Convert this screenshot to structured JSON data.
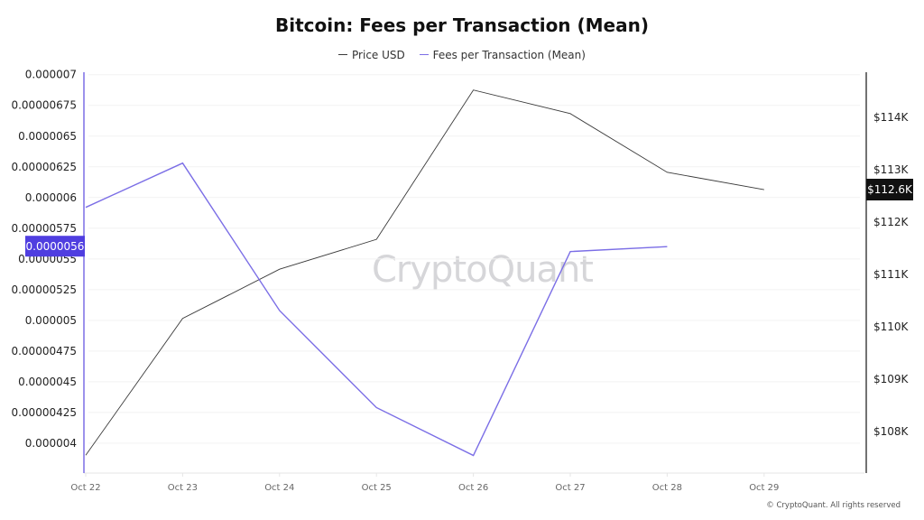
{
  "chart_data": {
    "type": "line",
    "title": "Bitcoin: Fees per Transaction (Mean)",
    "categories": [
      "Oct 22",
      "Oct 23",
      "Oct 24",
      "Oct 25",
      "Oct 26",
      "Oct 27",
      "Oct 28",
      "Oct 29"
    ],
    "series": [
      {
        "name": "Price USD",
        "axis": "right",
        "color": "#3a3a3a",
        "values": [
          107550,
          110160,
          111100,
          111670,
          114520,
          114070,
          112950,
          112620
        ]
      },
      {
        "name": "Fees per Transaction (Mean)",
        "axis": "left",
        "color": "#7b6ee6",
        "values": [
          5.92e-06,
          6.28e-06,
          5.08e-06,
          4.29e-06,
          3.9e-06,
          5.56e-06,
          5.6e-06,
          null
        ]
      }
    ],
    "left_axis": {
      "ticks": [
        "0.000007",
        "0.00000675",
        "0.0000065",
        "0.00000625",
        "0.000006",
        "0.00000575",
        "0.0000055",
        "0.00000525",
        "0.000005",
        "0.00000475",
        "0.0000045",
        "0.00000425",
        "0.000004"
      ],
      "range": [
        3.757e-06,
        7.02e-06
      ],
      "current_label": "0.0000056",
      "current_value": 5.6e-06
    },
    "right_axis": {
      "ticks": [
        {
          "v": 114000,
          "label": "$114K"
        },
        {
          "v": 113000,
          "label": "$113K"
        },
        {
          "v": 112000,
          "label": "$112K"
        },
        {
          "v": 111000,
          "label": "$111K"
        },
        {
          "v": 110000,
          "label": "$110K"
        },
        {
          "v": 109000,
          "label": "$109K"
        },
        {
          "v": 108000,
          "label": "$108K"
        }
      ],
      "range": [
        107210,
        114860
      ],
      "current_label": "$112.6K",
      "current_value": 112620
    },
    "grid": true,
    "legend_position": "top-center"
  },
  "watermark": "CryptoQuant",
  "copyright": "© CryptoQuant. All rights reserved"
}
